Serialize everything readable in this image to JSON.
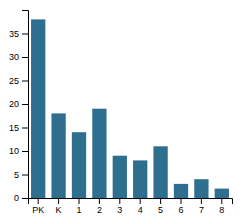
{
  "chart_data": {
    "type": "bar",
    "categories": [
      "PK",
      "K",
      "1",
      "2",
      "3",
      "4",
      "5",
      "6",
      "7",
      "8"
    ],
    "values": [
      38,
      18,
      14,
      19,
      9,
      8,
      11,
      3,
      4,
      2
    ],
    "color": "#2e6e8e",
    "ylim": [
      0,
      40
    ],
    "yticks": [
      0,
      5,
      10,
      15,
      20,
      25,
      30,
      35
    ],
    "grid": false
  }
}
